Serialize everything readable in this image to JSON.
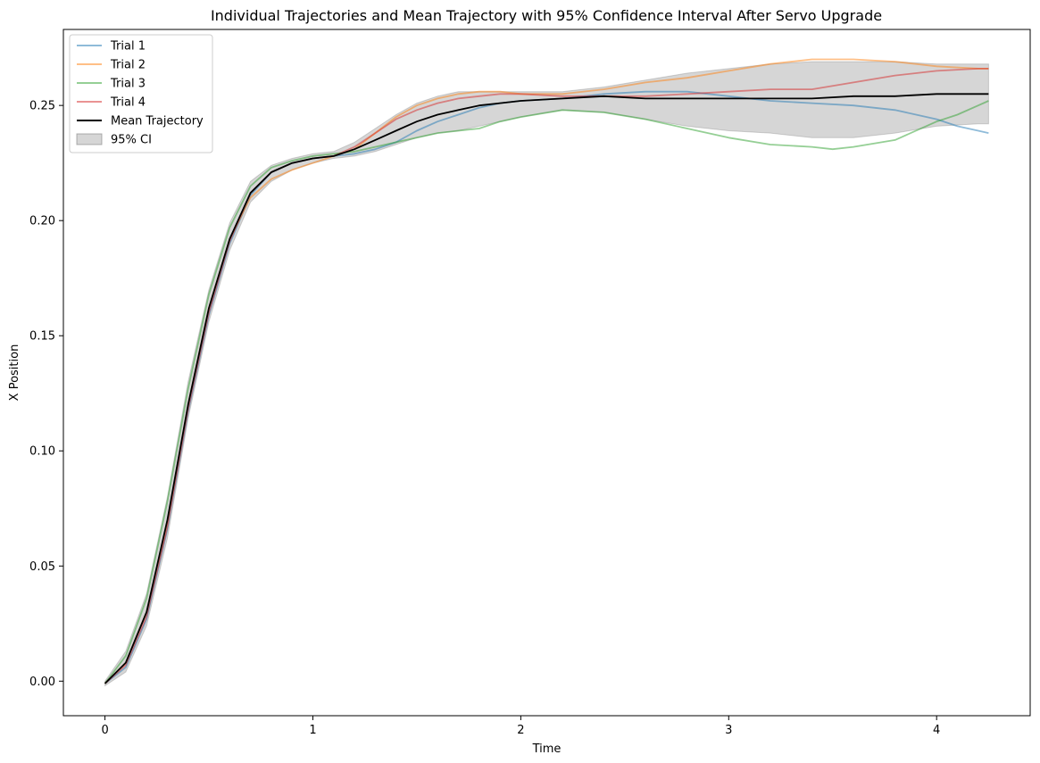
{
  "chart_data": {
    "type": "line",
    "title": "Individual Trajectories and Mean Trajectory with 95% Confidence Interval After Servo Upgrade",
    "xlabel": "Time",
    "ylabel": "X Position",
    "xlim": [
      -0.2,
      4.45
    ],
    "ylim": [
      -0.015,
      0.283
    ],
    "xticks": [
      0,
      1,
      2,
      3,
      4
    ],
    "xtick_labels": [
      "0",
      "1",
      "2",
      "3",
      "4"
    ],
    "yticks": [
      0.0,
      0.05,
      0.1,
      0.15,
      0.2,
      0.25
    ],
    "ytick_labels": [
      "0.00",
      "0.05",
      "0.10",
      "0.15",
      "0.20",
      "0.25"
    ],
    "grid": false,
    "legend_position": "upper-left",
    "series": [
      {
        "name": "Trial 1",
        "color": "#1f77b4",
        "opacity": 0.5,
        "x": [
          0,
          0.1,
          0.2,
          0.3,
          0.4,
          0.5,
          0.6,
          0.7,
          0.8,
          0.9,
          1.0,
          1.1,
          1.2,
          1.3,
          1.4,
          1.5,
          1.6,
          1.7,
          1.8,
          1.9,
          2.0,
          2.2,
          2.4,
          2.6,
          2.8,
          3.0,
          3.2,
          3.4,
          3.6,
          3.8,
          4.0,
          4.1,
          4.2,
          4.25
        ],
        "y": [
          -0.001,
          0.006,
          0.027,
          0.066,
          0.117,
          0.159,
          0.19,
          0.211,
          0.221,
          0.225,
          0.227,
          0.228,
          0.229,
          0.231,
          0.234,
          0.239,
          0.243,
          0.246,
          0.249,
          0.251,
          0.252,
          0.253,
          0.255,
          0.256,
          0.256,
          0.254,
          0.252,
          0.251,
          0.25,
          0.248,
          0.244,
          0.241,
          0.239,
          0.238
        ]
      },
      {
        "name": "Trial 2",
        "color": "#ff7f0e",
        "opacity": 0.5,
        "x": [
          0,
          0.1,
          0.2,
          0.3,
          0.4,
          0.5,
          0.6,
          0.7,
          0.8,
          0.9,
          1.0,
          1.1,
          1.2,
          1.3,
          1.4,
          1.5,
          1.6,
          1.7,
          1.8,
          1.9,
          2.0,
          2.2,
          2.4,
          2.6,
          2.8,
          3.0,
          3.2,
          3.4,
          3.6,
          3.8,
          4.0,
          4.2,
          4.25
        ],
        "y": [
          -0.001,
          0.008,
          0.03,
          0.069,
          0.12,
          0.162,
          0.192,
          0.21,
          0.218,
          0.222,
          0.225,
          0.228,
          0.231,
          0.238,
          0.245,
          0.25,
          0.253,
          0.255,
          0.256,
          0.256,
          0.255,
          0.255,
          0.257,
          0.26,
          0.262,
          0.265,
          0.268,
          0.27,
          0.27,
          0.269,
          0.267,
          0.266,
          0.266
        ]
      },
      {
        "name": "Trial 3",
        "color": "#2ca02c",
        "opacity": 0.5,
        "x": [
          0,
          0.1,
          0.2,
          0.3,
          0.4,
          0.5,
          0.6,
          0.7,
          0.8,
          0.9,
          1.0,
          1.1,
          1.2,
          1.3,
          1.4,
          1.5,
          1.6,
          1.7,
          1.8,
          1.9,
          2.0,
          2.2,
          2.4,
          2.6,
          2.8,
          3.0,
          3.2,
          3.4,
          3.5,
          3.6,
          3.8,
          4.0,
          4.1,
          4.2,
          4.25
        ],
        "y": [
          -0.001,
          0.011,
          0.036,
          0.078,
          0.127,
          0.168,
          0.197,
          0.215,
          0.223,
          0.226,
          0.228,
          0.229,
          0.23,
          0.232,
          0.234,
          0.236,
          0.238,
          0.239,
          0.24,
          0.243,
          0.245,
          0.248,
          0.247,
          0.244,
          0.24,
          0.236,
          0.233,
          0.232,
          0.231,
          0.232,
          0.235,
          0.243,
          0.246,
          0.25,
          0.252
        ]
      },
      {
        "name": "Trial 4",
        "color": "#d62728",
        "opacity": 0.5,
        "x": [
          0,
          0.1,
          0.2,
          0.3,
          0.4,
          0.5,
          0.6,
          0.7,
          0.8,
          0.9,
          1.0,
          1.1,
          1.2,
          1.3,
          1.4,
          1.5,
          1.6,
          1.7,
          1.8,
          1.9,
          2.0,
          2.2,
          2.4,
          2.6,
          2.8,
          3.0,
          3.2,
          3.4,
          3.6,
          3.8,
          4.0,
          4.2,
          4.25
        ],
        "y": [
          -0.001,
          0.007,
          0.028,
          0.067,
          0.118,
          0.16,
          0.191,
          0.212,
          0.221,
          0.225,
          0.227,
          0.228,
          0.232,
          0.238,
          0.244,
          0.248,
          0.251,
          0.253,
          0.254,
          0.255,
          0.255,
          0.254,
          0.254,
          0.254,
          0.255,
          0.256,
          0.257,
          0.257,
          0.26,
          0.263,
          0.265,
          0.266,
          0.266
        ]
      },
      {
        "name": "Mean Trajectory",
        "color": "#000000",
        "opacity": 1.0,
        "x": [
          0,
          0.1,
          0.2,
          0.3,
          0.4,
          0.5,
          0.6,
          0.7,
          0.8,
          0.9,
          1.0,
          1.1,
          1.2,
          1.3,
          1.4,
          1.5,
          1.6,
          1.7,
          1.8,
          1.9,
          2.0,
          2.2,
          2.4,
          2.6,
          2.8,
          3.0,
          3.2,
          3.4,
          3.6,
          3.8,
          4.0,
          4.2,
          4.25
        ],
        "y": [
          -0.001,
          0.008,
          0.03,
          0.07,
          0.12,
          0.162,
          0.192,
          0.212,
          0.221,
          0.225,
          0.227,
          0.228,
          0.231,
          0.235,
          0.239,
          0.243,
          0.246,
          0.248,
          0.25,
          0.251,
          0.252,
          0.253,
          0.254,
          0.253,
          0.253,
          0.253,
          0.253,
          0.253,
          0.254,
          0.254,
          0.255,
          0.255,
          0.255
        ]
      }
    ],
    "confidence_interval": {
      "name": "95% CI",
      "color": "#808080",
      "opacity": 0.32,
      "x": [
        0,
        0.1,
        0.2,
        0.3,
        0.4,
        0.5,
        0.6,
        0.7,
        0.8,
        0.9,
        1.0,
        1.1,
        1.2,
        1.3,
        1.4,
        1.5,
        1.6,
        1.7,
        1.8,
        1.9,
        2.0,
        2.2,
        2.4,
        2.6,
        2.8,
        3.0,
        3.2,
        3.4,
        3.6,
        3.8,
        4.0,
        4.2,
        4.25
      ],
      "lower": [
        -0.002,
        0.004,
        0.024,
        0.062,
        0.114,
        0.156,
        0.187,
        0.208,
        0.217,
        0.222,
        0.225,
        0.227,
        0.228,
        0.23,
        0.233,
        0.236,
        0.238,
        0.239,
        0.241,
        0.243,
        0.245,
        0.248,
        0.247,
        0.244,
        0.241,
        0.239,
        0.238,
        0.236,
        0.236,
        0.238,
        0.241,
        0.242,
        0.242
      ],
      "upper": [
        0.0,
        0.013,
        0.038,
        0.08,
        0.13,
        0.17,
        0.199,
        0.217,
        0.224,
        0.227,
        0.229,
        0.23,
        0.234,
        0.24,
        0.246,
        0.251,
        0.254,
        0.256,
        0.256,
        0.256,
        0.256,
        0.256,
        0.258,
        0.261,
        0.264,
        0.266,
        0.268,
        0.269,
        0.269,
        0.269,
        0.268,
        0.268,
        0.268
      ]
    }
  }
}
